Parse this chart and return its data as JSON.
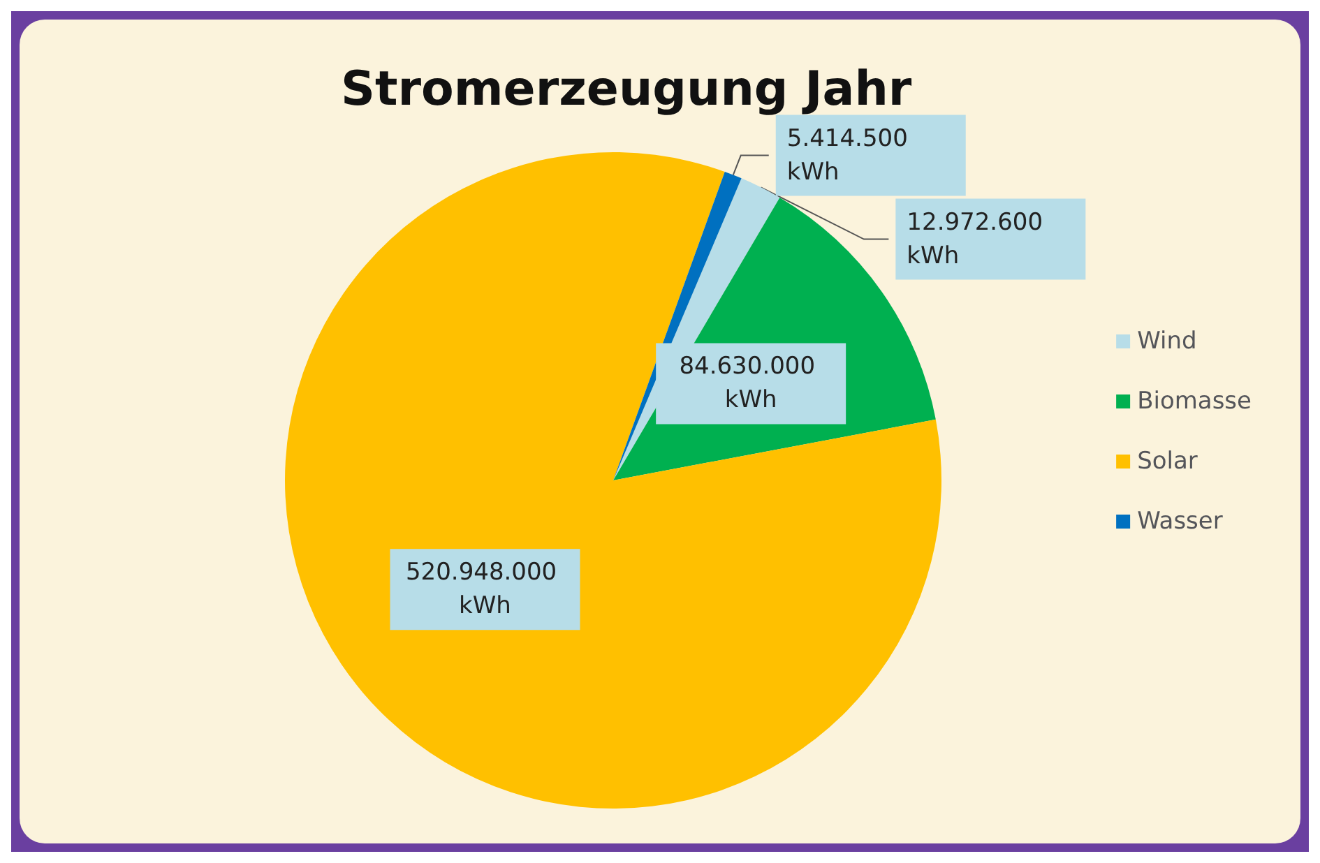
{
  "chart_data": {
    "type": "pie",
    "title": "Stromerzeugung Jahr",
    "categories": [
      "Wind",
      "Biomasse",
      "Solar",
      "Wasser"
    ],
    "values": [
      12972600,
      84630000,
      520948000,
      5414500
    ],
    "colors": [
      "#b7dde8",
      "#00b050",
      "#ffc000",
      "#0070c0"
    ],
    "value_labels": [
      "12.972.600 kWh",
      "84.630.000 kWh",
      "520.948.000 kWh",
      "5.414.500 kWh"
    ],
    "legend": "right"
  }
}
